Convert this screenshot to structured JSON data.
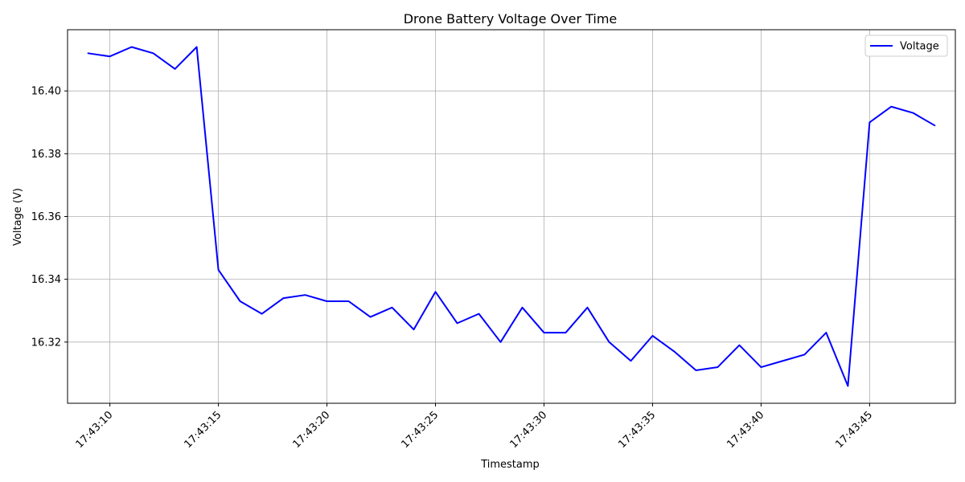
{
  "chart_data": {
    "type": "line",
    "title": "Drone Battery Voltage Over Time",
    "xlabel": "Timestamp",
    "ylabel": "Voltage (V)",
    "x": [
      "17:43:09",
      "17:43:10",
      "17:43:11",
      "17:43:12",
      "17:43:13",
      "17:43:14",
      "17:43:15",
      "17:43:16",
      "17:43:17",
      "17:43:18",
      "17:43:19",
      "17:43:20",
      "17:43:21",
      "17:43:22",
      "17:43:23",
      "17:43:24",
      "17:43:25",
      "17:43:26",
      "17:43:27",
      "17:43:28",
      "17:43:29",
      "17:43:30",
      "17:43:31",
      "17:43:32",
      "17:43:33",
      "17:43:34",
      "17:43:35",
      "17:43:36",
      "17:43:37",
      "17:43:38",
      "17:43:39",
      "17:43:40",
      "17:43:41",
      "17:43:42",
      "17:43:43",
      "17:43:44",
      "17:43:45",
      "17:43:46",
      "17:43:47",
      "17:43:48"
    ],
    "series": [
      {
        "name": "Voltage",
        "color": "#0000ff",
        "values": [
          16.412,
          16.411,
          16.414,
          16.412,
          16.407,
          16.414,
          16.343,
          16.333,
          16.329,
          16.334,
          16.335,
          16.333,
          16.333,
          16.328,
          16.331,
          16.324,
          16.336,
          16.326,
          16.329,
          16.32,
          16.331,
          16.323,
          16.323,
          16.331,
          16.32,
          16.314,
          16.322,
          16.317,
          16.311,
          16.312,
          16.319,
          16.312,
          16.314,
          16.316,
          16.323,
          16.306,
          16.39,
          16.395,
          16.393,
          16.389
        ]
      }
    ],
    "xticks": [
      "17:43:10",
      "17:43:15",
      "17:43:20",
      "17:43:25",
      "17:43:30",
      "17:43:35",
      "17:43:40",
      "17:43:45"
    ],
    "yticks": [
      "16.32",
      "16.34",
      "16.36",
      "16.38",
      "16.40"
    ],
    "ylim": [
      16.3005,
      16.4195
    ],
    "grid": true,
    "legend_position": "upper right"
  }
}
